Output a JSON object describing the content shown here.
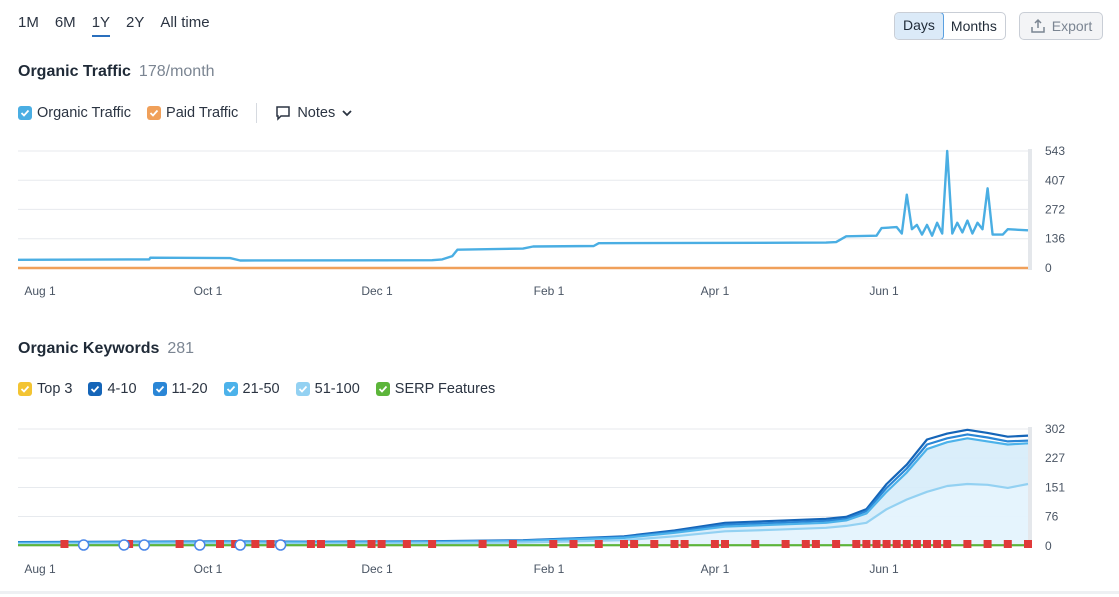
{
  "range_tabs": [
    {
      "label": "1M",
      "active": false
    },
    {
      "label": "6M",
      "active": false
    },
    {
      "label": "1Y",
      "active": true
    },
    {
      "label": "2Y",
      "active": false
    },
    {
      "label": "All time",
      "active": false
    }
  ],
  "view_toggle": {
    "days": "Days",
    "months": "Months",
    "selected": "Days"
  },
  "export_label": "Export",
  "traffic": {
    "title": "Organic Traffic",
    "value": "178/month",
    "legend": [
      {
        "label": "Organic Traffic",
        "color": "#4aaee3"
      },
      {
        "label": "Paid Traffic",
        "color": "#f0a05a"
      }
    ],
    "notes_label": "Notes"
  },
  "keywords": {
    "title": "Organic Keywords",
    "value": "281",
    "legend": [
      {
        "label": "Top 3",
        "color": "#f3c433"
      },
      {
        "label": "4-10",
        "color": "#1565b8"
      },
      {
        "label": "11-20",
        "color": "#2a86d6"
      },
      {
        "label": "21-50",
        "color": "#4cb2ea"
      },
      {
        "label": "51-100",
        "color": "#93d1f2"
      },
      {
        "label": "SERP Features",
        "color": "#5cb53a"
      }
    ]
  },
  "chart_data": [
    {
      "type": "line",
      "x_ticks": [
        "Aug 1",
        "Oct 1",
        "Dec 1",
        "Feb 1",
        "Apr 1",
        "Jun 1"
      ],
      "y_ticks": [
        0,
        136,
        272,
        407,
        543
      ],
      "ylim": [
        0,
        543
      ],
      "grid": true,
      "series": [
        {
          "name": "Organic Traffic",
          "color": "#4aaee3",
          "points": [
            [
              0,
              38
            ],
            [
              0.13,
              40
            ],
            [
              0.131,
              48
            ],
            [
              0.21,
              46
            ],
            [
              0.22,
              35
            ],
            [
              0.41,
              36
            ],
            [
              0.42,
              40
            ],
            [
              0.43,
              55
            ],
            [
              0.435,
              85
            ],
            [
              0.5,
              90
            ],
            [
              0.51,
              100
            ],
            [
              0.57,
              102
            ],
            [
              0.575,
              115
            ],
            [
              0.8,
              118
            ],
            [
              0.81,
              120
            ],
            [
              0.82,
              147
            ],
            [
              0.85,
              150
            ],
            [
              0.855,
              185
            ],
            [
              0.87,
              190
            ],
            [
              0.875,
              160
            ],
            [
              0.88,
              340
            ],
            [
              0.885,
              180
            ],
            [
              0.89,
              200
            ],
            [
              0.895,
              155
            ],
            [
              0.9,
              200
            ],
            [
              0.905,
              150
            ],
            [
              0.91,
              210
            ],
            [
              0.915,
              160
            ],
            [
              0.92,
              543
            ],
            [
              0.925,
              160
            ],
            [
              0.93,
              210
            ],
            [
              0.935,
              165
            ],
            [
              0.94,
              220
            ],
            [
              0.945,
              160
            ],
            [
              0.95,
              210
            ],
            [
              0.955,
              180
            ],
            [
              0.96,
              370
            ],
            [
              0.965,
              155
            ],
            [
              0.975,
              155
            ],
            [
              0.98,
              180
            ],
            [
              1.0,
              175
            ]
          ]
        },
        {
          "name": "Paid Traffic",
          "color": "#f0a05a",
          "points": [
            [
              0,
              0
            ],
            [
              1,
              0
            ]
          ]
        }
      ]
    },
    {
      "type": "area",
      "x_ticks": [
        "Aug 1",
        "Oct 1",
        "Dec 1",
        "Feb 1",
        "Apr 1",
        "Jun 1"
      ],
      "y_ticks": [
        0,
        76,
        151,
        227,
        302
      ],
      "ylim": [
        0,
        302
      ],
      "grid": true,
      "series": [
        {
          "name": "4-10",
          "color": "#1565b8",
          "points": [
            [
              0,
              10
            ],
            [
              0.1,
              11
            ],
            [
              0.2,
              12
            ],
            [
              0.3,
              11
            ],
            [
              0.4,
              12
            ],
            [
              0.5,
              15
            ],
            [
              0.55,
              20
            ],
            [
              0.6,
              25
            ],
            [
              0.65,
              40
            ],
            [
              0.7,
              60
            ],
            [
              0.75,
              65
            ],
            [
              0.8,
              70
            ],
            [
              0.82,
              75
            ],
            [
              0.84,
              95
            ],
            [
              0.86,
              160
            ],
            [
              0.88,
              210
            ],
            [
              0.9,
              275
            ],
            [
              0.92,
              290
            ],
            [
              0.94,
              300
            ],
            [
              0.96,
              292
            ],
            [
              0.98,
              282
            ],
            [
              1.0,
              285
            ]
          ]
        },
        {
          "name": "11-20",
          "color": "#2a86d6",
          "points": [
            [
              0,
              9
            ],
            [
              0.1,
              10
            ],
            [
              0.2,
              11
            ],
            [
              0.3,
              10
            ],
            [
              0.4,
              11
            ],
            [
              0.5,
              14
            ],
            [
              0.55,
              19
            ],
            [
              0.6,
              23
            ],
            [
              0.65,
              37
            ],
            [
              0.7,
              55
            ],
            [
              0.75,
              60
            ],
            [
              0.8,
              65
            ],
            [
              0.82,
              70
            ],
            [
              0.84,
              90
            ],
            [
              0.86,
              150
            ],
            [
              0.88,
              200
            ],
            [
              0.9,
              262
            ],
            [
              0.92,
              278
            ],
            [
              0.94,
              288
            ],
            [
              0.96,
              280
            ],
            [
              0.98,
              270
            ],
            [
              1.0,
              272
            ]
          ]
        },
        {
          "name": "21-50",
          "color": "#4cb2ea",
          "points": [
            [
              0,
              8
            ],
            [
              0.1,
              9
            ],
            [
              0.2,
              10
            ],
            [
              0.3,
              9
            ],
            [
              0.4,
              10
            ],
            [
              0.5,
              13
            ],
            [
              0.55,
              17
            ],
            [
              0.6,
              21
            ],
            [
              0.65,
              34
            ],
            [
              0.7,
              50
            ],
            [
              0.75,
              55
            ],
            [
              0.8,
              60
            ],
            [
              0.82,
              66
            ],
            [
              0.84,
              84
            ],
            [
              0.86,
              140
            ],
            [
              0.88,
              190
            ],
            [
              0.9,
              250
            ],
            [
              0.92,
              268
            ],
            [
              0.94,
              278
            ],
            [
              0.96,
              270
            ],
            [
              0.98,
              262
            ],
            [
              1.0,
              265
            ]
          ]
        },
        {
          "name": "51-100",
          "color": "#93d1f2",
          "points": [
            [
              0,
              5
            ],
            [
              0.1,
              6
            ],
            [
              0.2,
              7
            ],
            [
              0.3,
              6
            ],
            [
              0.4,
              7
            ],
            [
              0.5,
              9
            ],
            [
              0.55,
              12
            ],
            [
              0.6,
              15
            ],
            [
              0.65,
              25
            ],
            [
              0.7,
              38
            ],
            [
              0.75,
              42
            ],
            [
              0.8,
              47
            ],
            [
              0.82,
              52
            ],
            [
              0.84,
              60
            ],
            [
              0.86,
              95
            ],
            [
              0.88,
              120
            ],
            [
              0.9,
              140
            ],
            [
              0.92,
              155
            ],
            [
              0.94,
              160
            ],
            [
              0.96,
              158
            ],
            [
              0.98,
              150
            ],
            [
              1.0,
              160
            ]
          ]
        },
        {
          "name": "SERP Features",
          "color": "#5cb53a",
          "points": [
            [
              0,
              2
            ],
            [
              1,
              2
            ]
          ]
        }
      ],
      "serp_flags": [
        0.046,
        0.11,
        0.16,
        0.2,
        0.215,
        0.235,
        0.25,
        0.26,
        0.29,
        0.3,
        0.33,
        0.35,
        0.36,
        0.385,
        0.41,
        0.46,
        0.49,
        0.53,
        0.55,
        0.575,
        0.6,
        0.61,
        0.63,
        0.65,
        0.66,
        0.69,
        0.7,
        0.73,
        0.76,
        0.78,
        0.79,
        0.81,
        0.83,
        0.84,
        0.85,
        0.86,
        0.87,
        0.88,
        0.89,
        0.9,
        0.91,
        0.92,
        0.94,
        0.96,
        0.98,
        1.0
      ],
      "google_icons": [
        0.065,
        0.105,
        0.125,
        0.18,
        0.22,
        0.26
      ]
    }
  ]
}
